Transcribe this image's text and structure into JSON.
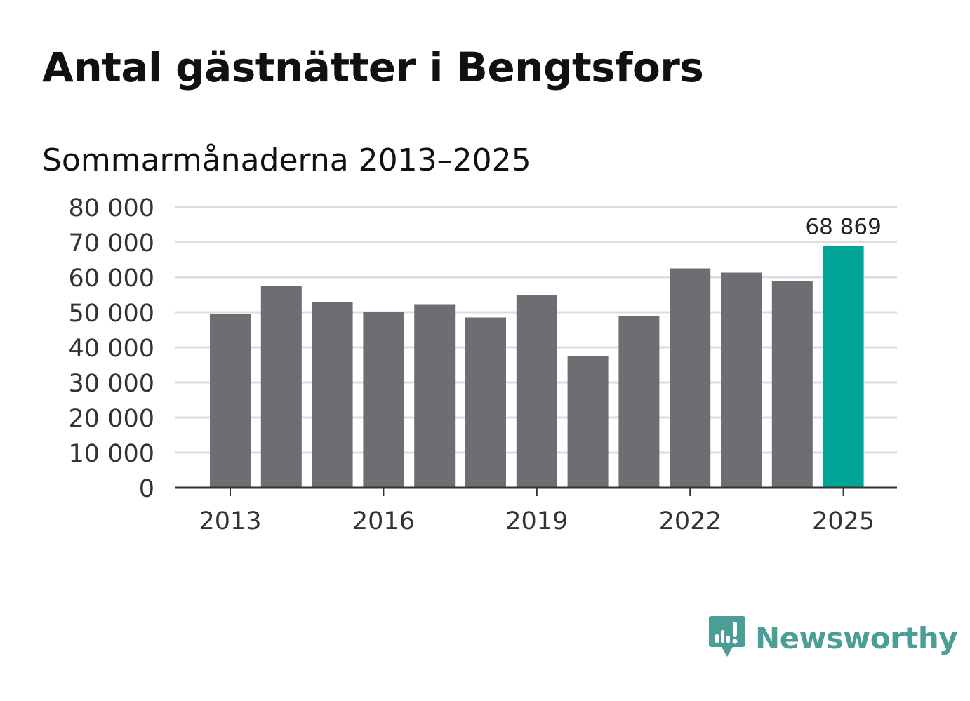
{
  "title": "Antal gästnätter i Bengtsfors",
  "subtitle": "Sommarmånaderna 2013–2025",
  "brand": {
    "name": "Newsworthy",
    "color": "#4a9e96",
    "icon": "newsworthy-logo-icon"
  },
  "colors": {
    "bar": "#6e6d73",
    "highlight": "#00a499",
    "grid": "#dddddd",
    "axis": "#333333"
  },
  "chart_data": {
    "type": "bar",
    "categories": [
      "2013",
      "2014",
      "2015",
      "2016",
      "2017",
      "2018",
      "2019",
      "2020",
      "2021",
      "2022",
      "2023",
      "2024",
      "2025"
    ],
    "values": [
      49500,
      57500,
      53000,
      50200,
      52300,
      48500,
      55000,
      37500,
      49000,
      62500,
      61300,
      58800,
      68869
    ],
    "highlight_index": 12,
    "data_labels": [
      {
        "index": 12,
        "text": "68 869"
      }
    ],
    "x_tick_labels": [
      "2013",
      "2016",
      "2019",
      "2022",
      "2025"
    ],
    "y_tick_labels": [
      "0",
      "10 000",
      "20 000",
      "30 000",
      "40 000",
      "50 000",
      "60 000",
      "70 000",
      "80 000"
    ],
    "ylim": [
      0,
      80000
    ],
    "grid": true,
    "legend": "none",
    "title": "Antal gästnätter i Bengtsfors",
    "subtitle": "Sommarmånaderna 2013–2025"
  }
}
